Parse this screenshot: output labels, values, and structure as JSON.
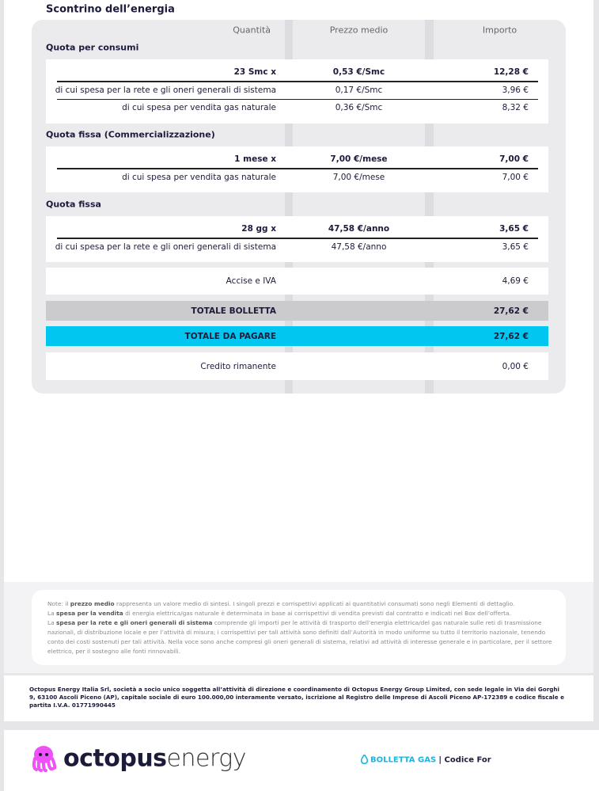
{
  "section_title": "Scontrino dell’energia",
  "columns": [
    "Quantità",
    "Prezzo medio",
    "Importo"
  ],
  "groups": [
    {
      "title": "Quota per consumi",
      "rows": [
        [
          "23 Smc x",
          "0,53 €/Smc",
          "12,28 €"
        ],
        [
          "di cui spesa per la rete e gli oneri generali di sistema",
          "0,17 €/Smc",
          "3,96 €"
        ],
        [
          "di cui spesa per vendita gas naturale",
          "0,36 €/Smc",
          "8,32 €"
        ]
      ]
    },
    {
      "title": "Quota fissa (Commercializzazione)",
      "rows": [
        [
          "1 mese x",
          "7,00 €/mese",
          "7,00 €"
        ],
        [
          "di cui spesa per vendita gas naturale",
          "7,00 €/mese",
          "7,00 €"
        ]
      ]
    },
    {
      "title": "Quota fissa",
      "rows": [
        [
          "28 gg x",
          "47,58 €/anno",
          "3,65 €"
        ],
        [
          "di cui spesa per la rete e gli oneri generali di sistema",
          "47,58 €/anno",
          "3,65 €"
        ]
      ]
    }
  ],
  "summary": [
    {
      "label": "Accise e IVA",
      "amount": "4,69 €"
    },
    {
      "label": "TOTALE BOLLETTA",
      "amount": "27,62 €"
    },
    {
      "label": "TOTALE DA PAGARE",
      "amount": "27,62 €"
    },
    {
      "label": "Credito rimanente",
      "amount": "0,00 €"
    }
  ],
  "notes": [
    [
      "Note: il ",
      "prezzo medio",
      " rappresenta un valore medio di sintesi. I singoli prezzi e corrispettivi applicati ai quantitativi consumati sono negli Elementi di dettaglio."
    ],
    [
      "La ",
      "spesa per la vendita",
      " di energia elettrica/gas naturale è determinata in base ai corrispettivi di vendita previsti dal contratto e indicati nel Box dell’offerta."
    ],
    [
      "La ",
      "spesa per la rete e gli oneri generali di sistema",
      " comprende gli importi per le attività di trasporto dell’energia elettrica/del gas naturale sulle reti di trasmissione nazionali, di distribuzione locale e per l’attività di misura; i corrispettivi per tali attività sono definiti dall’Autorità in modo uniforme su tutto il territorio nazionale, tenendo conto dei costi sostenuti per tali attività. Nella voce sono anche compresi gli oneri generali di sistema, relativi ad attività di interesse generale e in particolare, per il settore elettrico, per il sostegno alle fonti rinnovabili."
    ]
  ],
  "company_info": "Octopus Energy Italia Srl, società a socio unico soggetta all’attività di direzione e coordinamento di Octopus Energy Group Limited, con sede legale in Via dei Gorghi 9, 63100 Ascoli Piceno (AP), capitale sociale di euro 100.000,00 interamente versato, iscrizione al Registro delle Imprese di Ascoli Piceno AP-172389 e codice fiscale e partita I.V.A. 01771990445",
  "brand": {
    "name_bold": "octopus",
    "name_light": "energy"
  },
  "bill_type": "BOLLETTA GAS",
  "code_label": "Codice For"
}
